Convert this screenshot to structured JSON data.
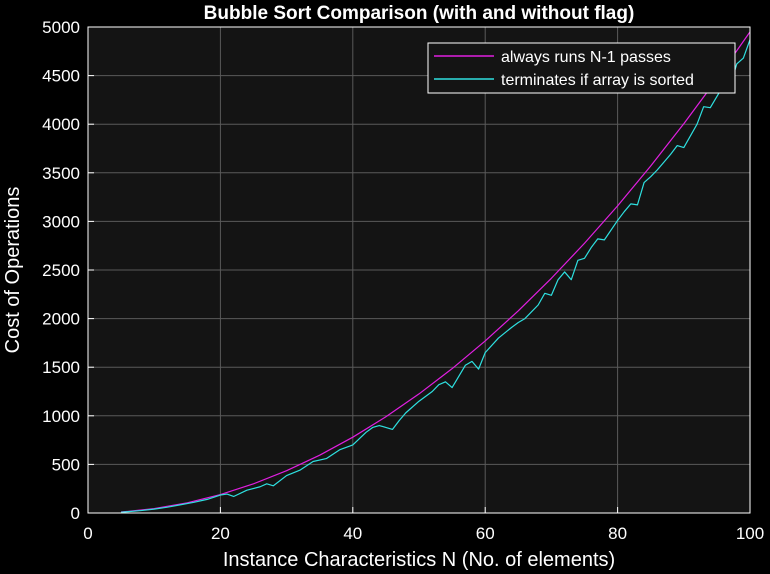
{
  "chart_data": {
    "type": "line",
    "title": "Bubble Sort Comparison (with and without flag)",
    "xlabel": "Instance Characteristics N (No. of elements)",
    "ylabel": "Cost of Operations",
    "xlim": [
      0,
      100
    ],
    "ylim": [
      0,
      5000
    ],
    "xticks": [
      0,
      20,
      40,
      60,
      80,
      100
    ],
    "yticks": [
      0,
      500,
      1000,
      1500,
      2000,
      2500,
      3000,
      3500,
      4000,
      4500,
      5000
    ],
    "grid": true,
    "legend_position": "top-right",
    "background": "#141414",
    "series": [
      {
        "name": "always runs N-1 passes",
        "color": "#e01fe0",
        "x": [
          5,
          10,
          15,
          20,
          25,
          30,
          35,
          40,
          45,
          50,
          55,
          60,
          65,
          70,
          75,
          80,
          85,
          90,
          95,
          100
        ],
        "y": [
          10,
          45,
          105,
          190,
          300,
          435,
          595,
          780,
          990,
          1225,
          1485,
          1770,
          2080,
          2415,
          2775,
          3160,
          3570,
          4005,
          4465,
          4950
        ]
      },
      {
        "name": "terminates if array is sorted",
        "color": "#2ee0e0",
        "x": [
          5,
          8,
          10,
          12,
          14,
          16,
          18,
          20,
          21,
          22,
          24,
          26,
          27,
          28,
          30,
          32,
          34,
          36,
          38,
          40,
          42,
          43,
          44,
          46,
          47,
          48,
          50,
          52,
          53,
          54,
          55,
          57,
          58,
          59,
          60,
          62,
          64,
          65,
          66,
          68,
          69,
          70,
          71,
          72,
          73,
          74,
          75,
          76,
          77,
          78,
          80,
          81,
          82,
          83,
          84,
          85,
          86,
          88,
          89,
          90,
          92,
          93,
          94,
          96,
          97,
          98,
          99,
          100
        ],
        "y": [
          8,
          25,
          40,
          60,
          85,
          110,
          140,
          185,
          195,
          170,
          235,
          270,
          300,
          280,
          385,
          440,
          530,
          560,
          650,
          700,
          830,
          880,
          900,
          860,
          950,
          1030,
          1150,
          1250,
          1320,
          1350,
          1290,
          1520,
          1560,
          1480,
          1650,
          1800,
          1910,
          1960,
          2000,
          2140,
          2260,
          2240,
          2400,
          2480,
          2400,
          2600,
          2620,
          2730,
          2820,
          2810,
          3010,
          3100,
          3180,
          3170,
          3400,
          3460,
          3530,
          3690,
          3780,
          3760,
          4000,
          4180,
          4170,
          4400,
          4390,
          4620,
          4680,
          4870
        ]
      }
    ]
  }
}
